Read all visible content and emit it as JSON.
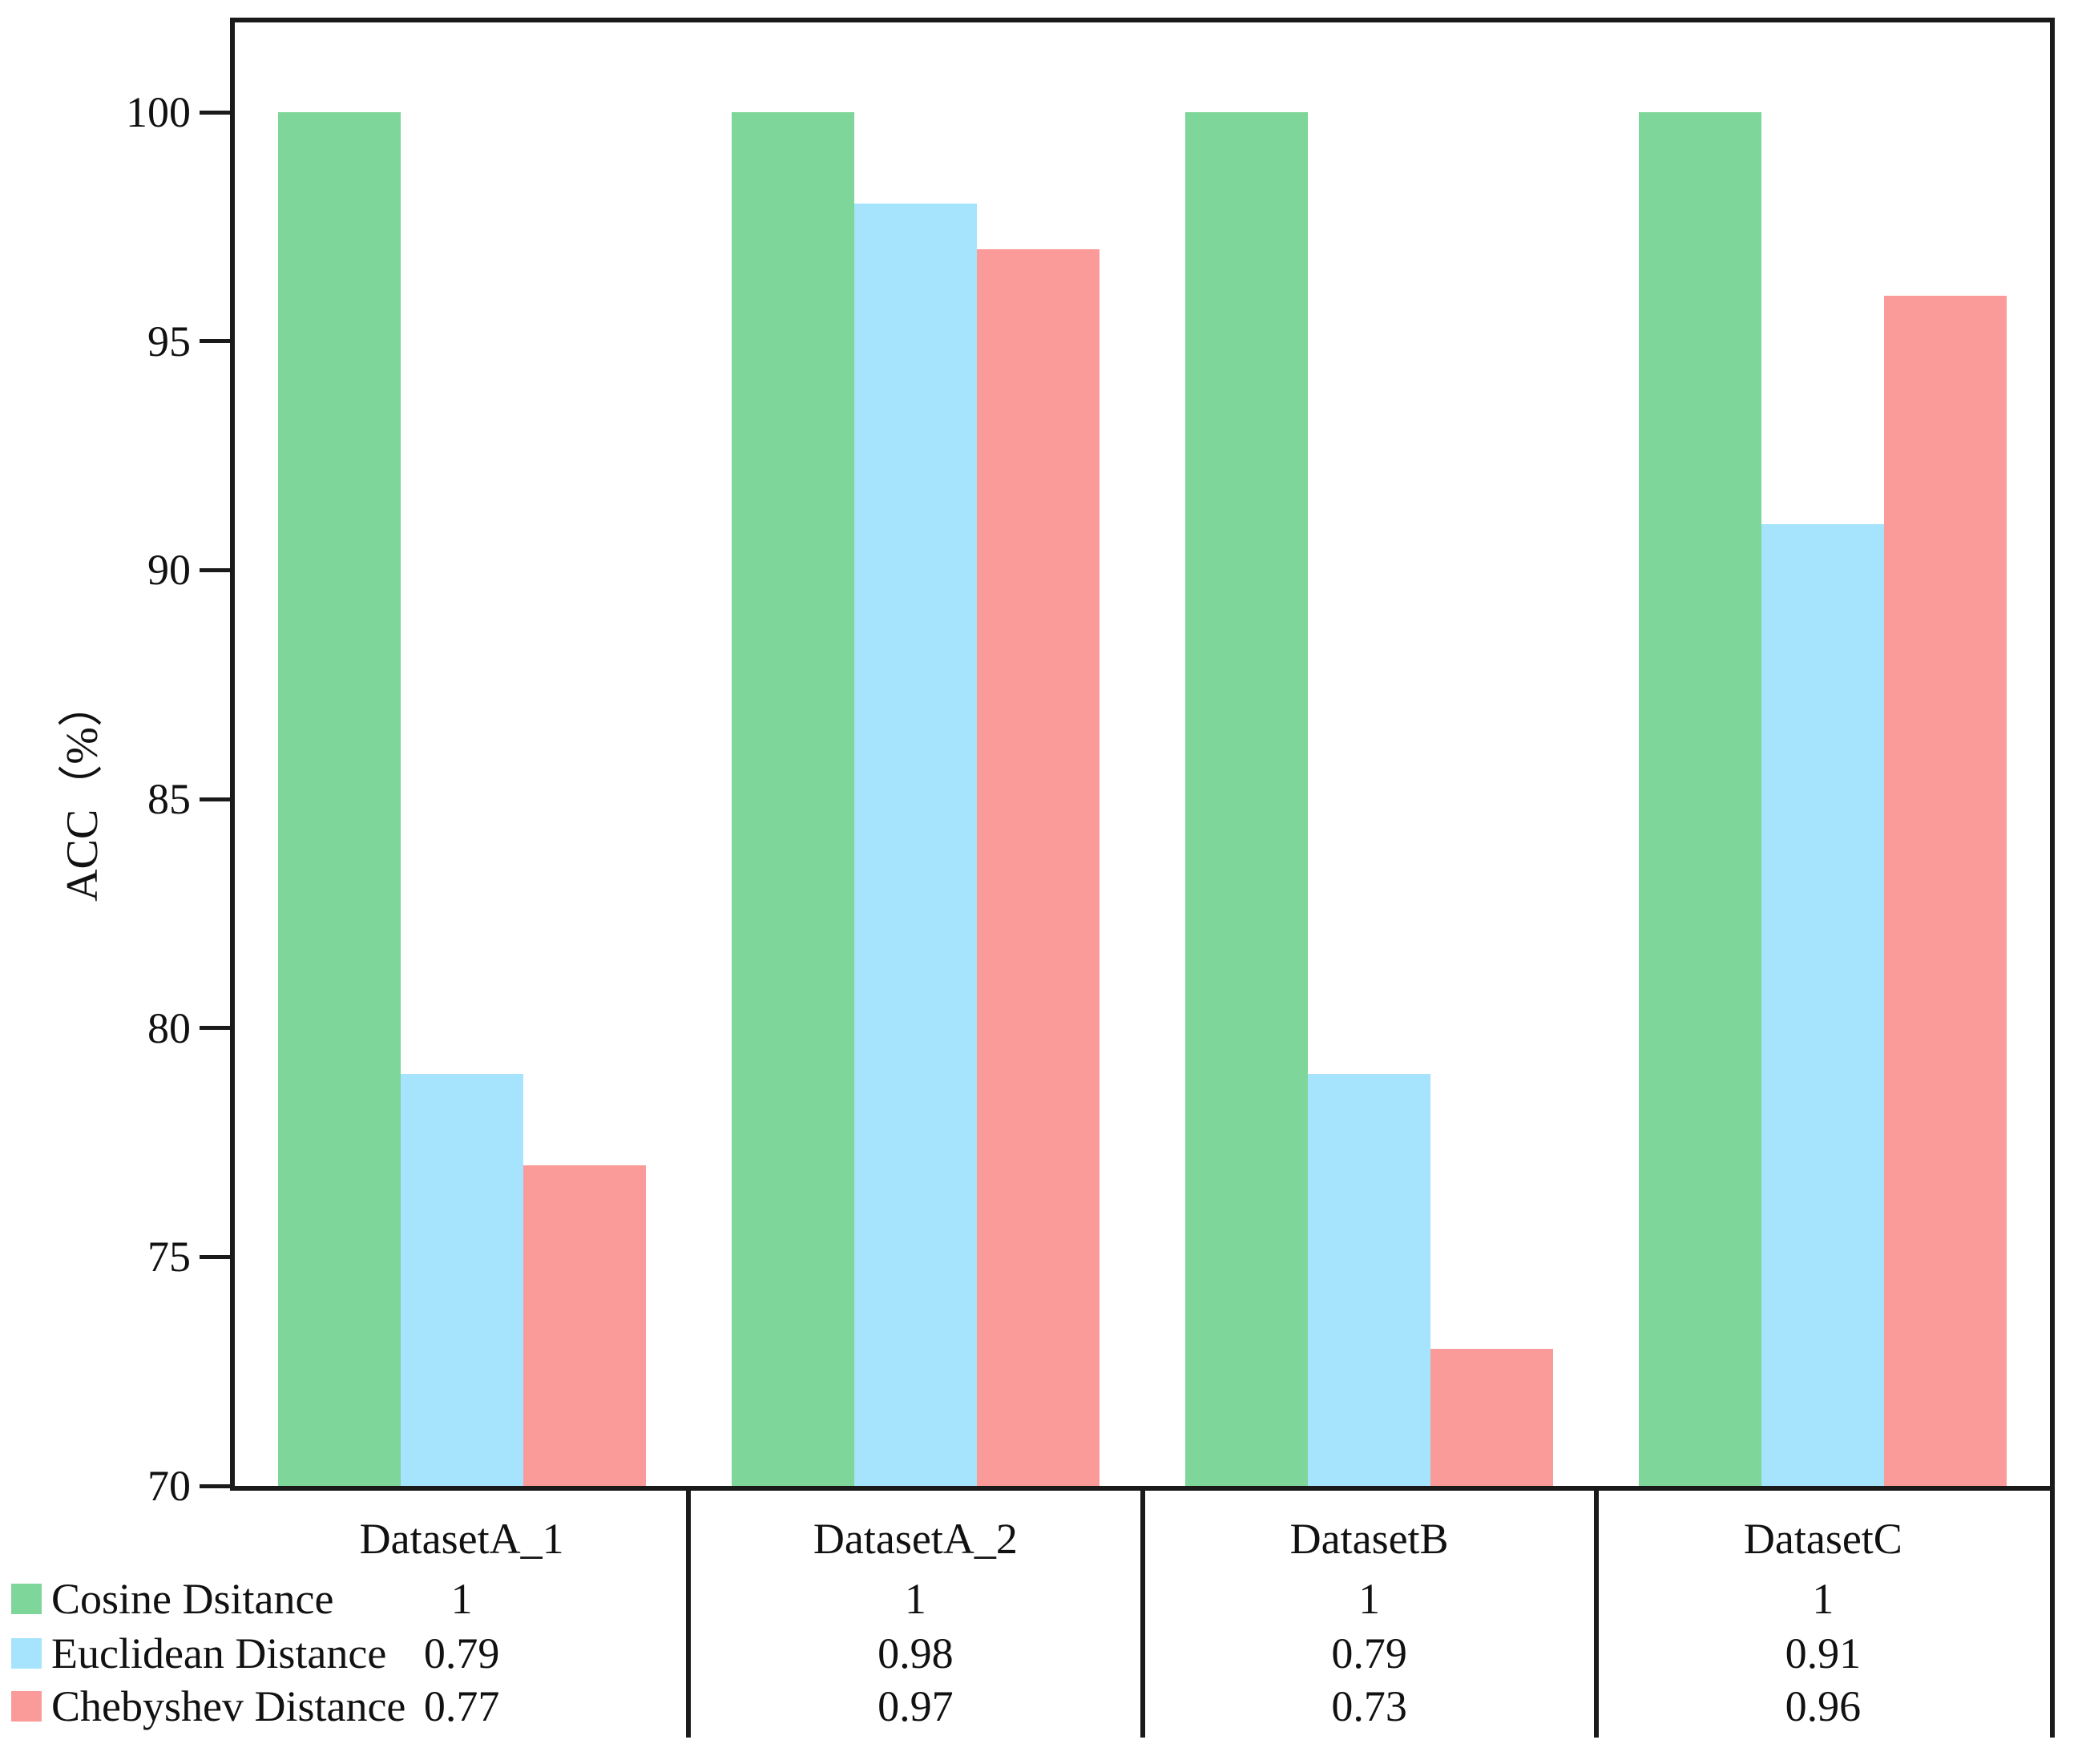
{
  "chart_data": {
    "type": "bar",
    "title": "",
    "xlabel": "",
    "ylabel": "ACC（%）",
    "ylim": [
      70,
      100
    ],
    "yticks": [
      100,
      95,
      90,
      85,
      80,
      75,
      70
    ],
    "grid": false,
    "legend_position": "bottom-left",
    "categories": [
      "DatasetA_1",
      "DatasetA_2",
      "DatasetB",
      "DatasetC"
    ],
    "series": [
      {
        "name": "Cosine Dsitance",
        "color": "#7ed69b",
        "values": [
          100,
          100,
          100,
          100
        ],
        "table_values": [
          "1",
          "1",
          "1",
          "1"
        ]
      },
      {
        "name": "Euclidean Distance",
        "color": "#a6e3fc",
        "values": [
          79,
          98,
          79,
          91
        ],
        "table_values": [
          "0.79",
          "0.98",
          "0.79",
          "0.91"
        ]
      },
      {
        "name": "Chebyshev Distance",
        "color": "#fb9b99",
        "values": [
          77,
          97,
          73,
          96
        ],
        "table_values": [
          "0.77",
          "0.97",
          "0.73",
          "0.96"
        ]
      }
    ]
  },
  "colors": {
    "axis": "#1a1a1a",
    "text": "#111111",
    "background": "#ffffff"
  }
}
